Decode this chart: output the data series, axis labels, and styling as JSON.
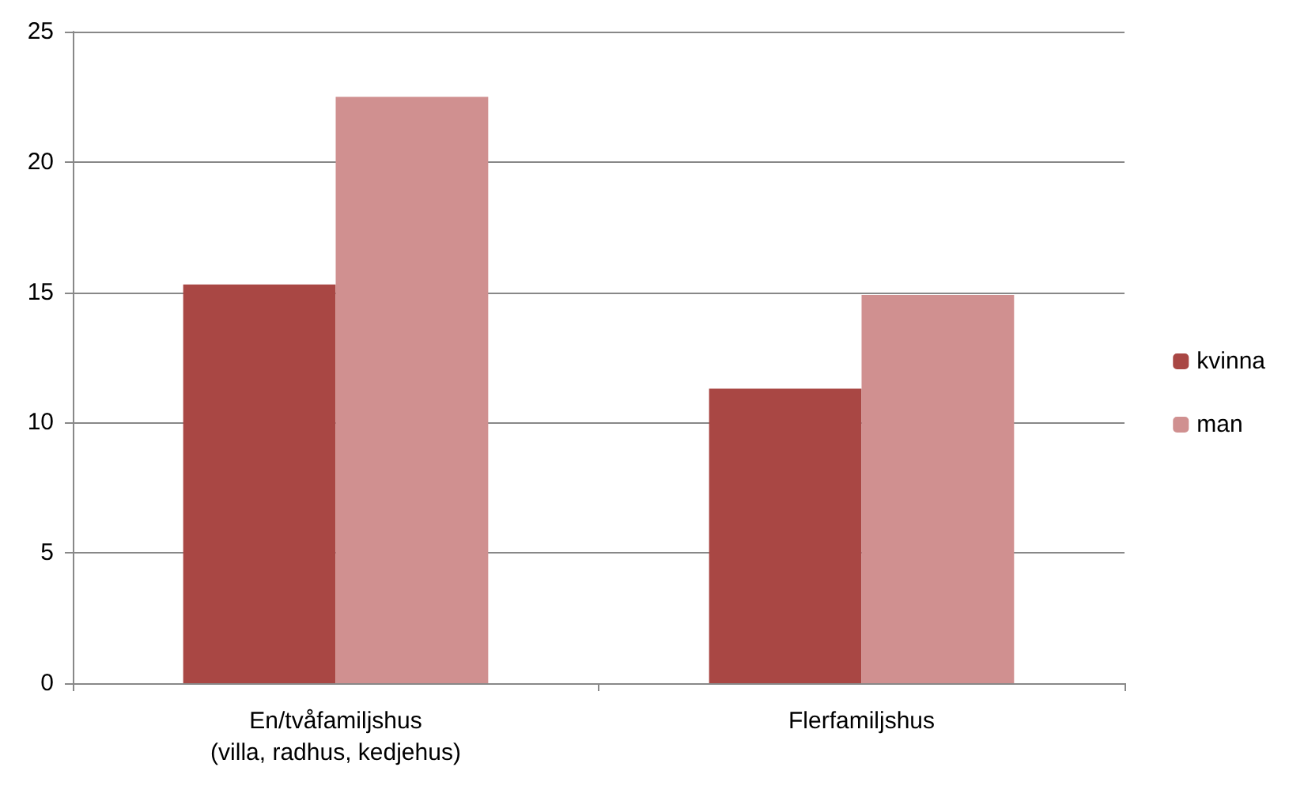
{
  "chart_data": {
    "type": "bar",
    "categories": [
      "En/tvåfamiljshus\n(villa, radhus, kedjehus)",
      "Flerfamiljshus"
    ],
    "series": [
      {
        "name": "kvinna",
        "color": "#a94744",
        "values": [
          15.3,
          11.3
        ]
      },
      {
        "name": "man",
        "color": "#d09090",
        "values": [
          22.5,
          14.9
        ]
      }
    ],
    "ylim": [
      0,
      25
    ],
    "yticks": [
      0,
      5,
      10,
      15,
      20,
      25
    ],
    "grid": "y",
    "legend": "right"
  }
}
